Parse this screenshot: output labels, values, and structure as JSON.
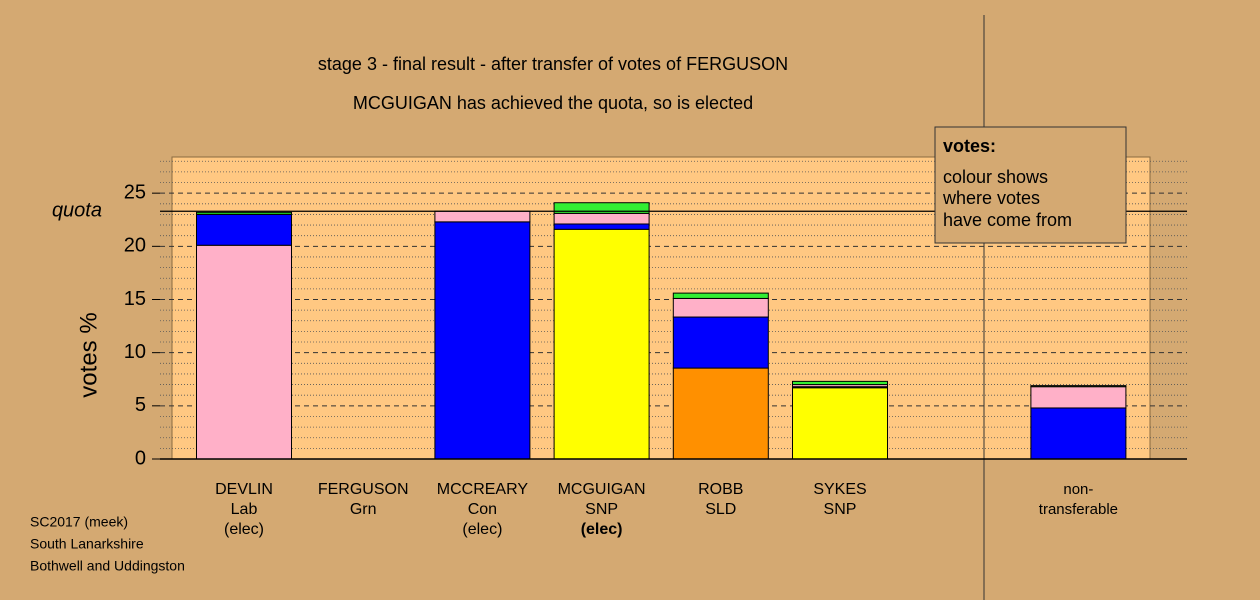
{
  "chart_data": {
    "type": "stacked-bar",
    "title": "stage 3 - final result - after transfer of votes of FERGUSON",
    "subtitle": "MCGUIGAN has achieved the quota, so is elected",
    "y_label": "votes %",
    "category_labels": [
      [
        "DEVLIN",
        "Lab",
        "(elec)"
      ],
      [
        "FERGUSON",
        "Grn"
      ],
      [
        "MCCREARY",
        "Con",
        "(elec)"
      ],
      [
        "MCGUIGAN",
        "SNP",
        "(elec)"
      ],
      [
        "ROBB",
        "SLD"
      ],
      [
        "SYKES",
        "SNP"
      ],
      null,
      [
        "non-",
        "transferable"
      ]
    ],
    "highlight": 3,
    "stacks": [
      [
        {
          "color": "#ffb0c8",
          "value": 20.1
        },
        {
          "color": "#0000ff",
          "value": 2.9
        },
        {
          "color": "#22cc22",
          "value": 0.2
        }
      ],
      [
        {
          "color": "#22cc22",
          "value": 0
        }
      ],
      [
        {
          "color": "#0000ff",
          "value": 22.3
        },
        {
          "color": "#ffb0c8",
          "value": 1.0
        }
      ],
      [
        {
          "color": "#ffff00",
          "value": 21.6
        },
        {
          "color": "#0000ff",
          "value": 0.5
        },
        {
          "color": "#ffb0c8",
          "value": 1.0
        },
        {
          "color": "#33ee33",
          "value": 1.0
        }
      ],
      [
        {
          "color": "#ff9000",
          "value": 8.55
        },
        {
          "color": "#0000ff",
          "value": 4.8
        },
        {
          "color": "#ffb0c8",
          "value": 1.75
        },
        {
          "color": "#33ee33",
          "value": 0.5
        }
      ],
      [
        {
          "color": "#ffff00",
          "value": 6.7
        },
        {
          "color": "#0000ff",
          "value": 0.1
        },
        {
          "color": "#ffb0c8",
          "value": 0.2
        },
        {
          "color": "#33ee33",
          "value": 0.3
        }
      ],
      [],
      [
        {
          "color": "#0000ff",
          "value": 4.8
        },
        {
          "color": "#ffb0c8",
          "value": 2.0
        },
        {
          "color": "#33ee33",
          "value": 0.1
        }
      ]
    ],
    "quota": 23.3,
    "quota_label": "quota",
    "ylim": [
      0,
      28.4
    ],
    "yticks": [
      0,
      5,
      10,
      15,
      20,
      25
    ],
    "minor_yticks": [
      1,
      2,
      3,
      4,
      6,
      7,
      8,
      9,
      11,
      12,
      13,
      14,
      16,
      17,
      18,
      19,
      21,
      22,
      23,
      24,
      26,
      27,
      28
    ],
    "legend": {
      "title": "votes:",
      "lines": [
        "colour shows",
        "where votes",
        "have come from"
      ]
    },
    "footer": [
      "SC2017 (meek)",
      "South Lanarkshire",
      "Bothwell and Uddingston"
    ]
  }
}
